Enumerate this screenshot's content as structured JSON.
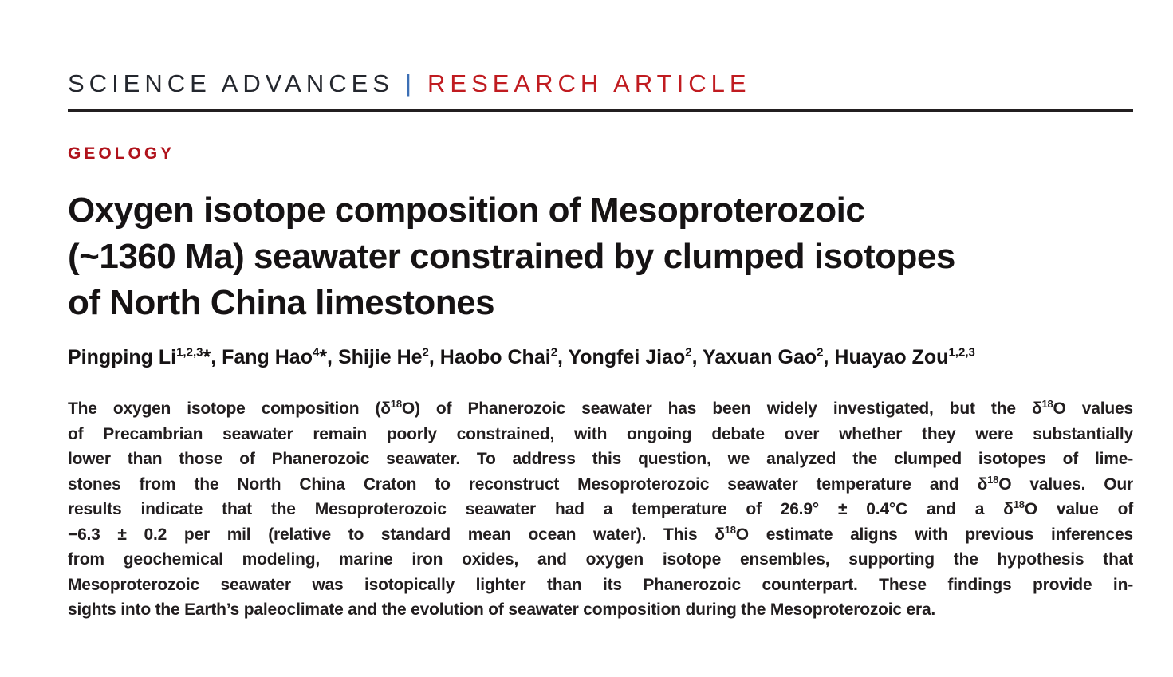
{
  "masthead": {
    "journal": "SCIENCE ADVANCES",
    "separator": "|",
    "article_type": "RESEARCH ARTICLE",
    "journal_color": "#24272e",
    "separator_color": "#3c6fb5",
    "article_type_color": "#c01b20"
  },
  "section": {
    "label": "GEOLOGY",
    "color": "#b0121b"
  },
  "title": {
    "lines": [
      "Oxygen isotope composition of Mesoproterozoic",
      "(~1360 Ma) seawater constrained by clumped isotopes",
      "of North China limestones"
    ]
  },
  "authors": {
    "line": "Pingping Li{1,2,3}*, Fang Hao{4}*, Shijie He{2}, Haobo Chai{2}, Yongfei Jiao{2}, Yaxuan Gao{2}, Huayao Zou{1,2,3}"
  },
  "abstract": {
    "lines": [
      "The oxygen isotope composition (δ{18}O) of Phanerozoic seawater has been widely investigated, but the δ{18}O values",
      "of Precambrian seawater remain poorly constrained, with ongoing debate over whether they were substantially",
      "lower than those of Phanerozoic seawater. To address this question, we analyzed the clumped isotopes of lime-",
      "stones from the North China Craton to reconstruct Mesoproterozoic seawater temperature and δ{18}O values. Our",
      "results indicate that the Mesoproterozoic seawater had a temperature of 26.9° ± 0.4°C and a δ{18}O value of",
      "−6.3 ± 0.2 per mil (relative to standard mean ocean water). This δ{18}O estimate aligns with previous inferences",
      "from geochemical modeling, marine iron oxides, and oxygen isotope ensembles, supporting the hypothesis that",
      "Mesoproterozoic seawater was isotopically lighter than its Phanerozoic counterpart. These findings provide in-",
      "sights into the Earth’s paleoclimate and the evolution of seawater composition during the Mesoproterozoic era."
    ]
  }
}
